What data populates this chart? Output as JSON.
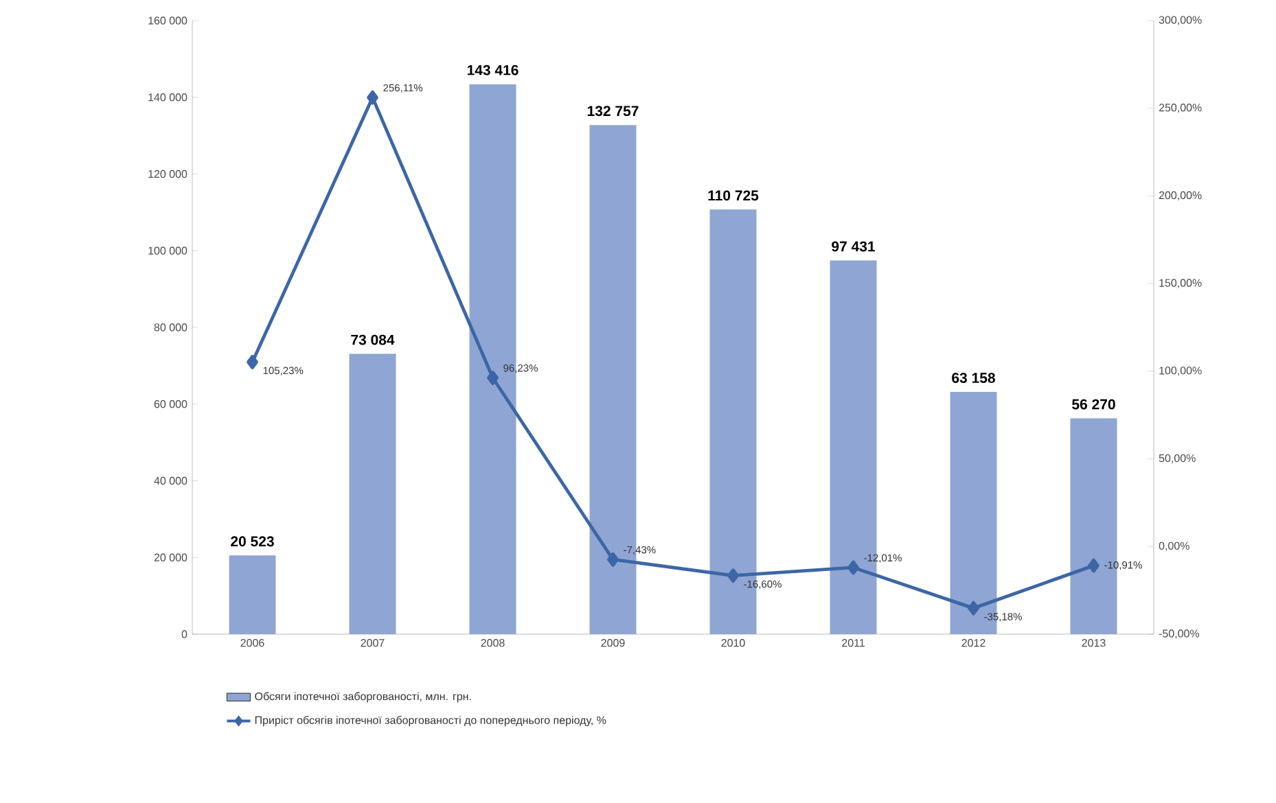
{
  "chart_data": {
    "type": "bar",
    "categories": [
      "2006",
      "2007",
      "2008",
      "2009",
      "2010",
      "2011",
      "2012",
      "2013"
    ],
    "series": [
      {
        "name": "Обсяги іпотечної заборгованості, млн. грн.",
        "color": "#8fa5d3",
        "values": [
          20523,
          73084,
          143416,
          132757,
          110725,
          97431,
          63158,
          56270
        ],
        "value_labels": [
          "20 523",
          "73 084",
          "143 416",
          "132 757",
          "110 725",
          "97 431",
          "63 158",
          "56 270"
        ]
      },
      {
        "name": "Приріст обсягів іпотечної заборгованості до попереднього періоду, %",
        "type": "line",
        "axis": "y2",
        "color": "#3c66a6",
        "marker": "diamond",
        "values": [
          105.23,
          256.11,
          96.23,
          -7.43,
          -16.6,
          -12.01,
          -35.18,
          -10.91
        ],
        "value_labels": [
          "105,23%",
          "256,11%",
          "96,23%",
          "-7,43%",
          "-16,60%",
          "-12,01%",
          "-35,18%",
          "-10,91%"
        ]
      }
    ],
    "ylim": [
      0,
      160000
    ],
    "yticks": [
      {
        "value": 0,
        "label": "0"
      },
      {
        "value": 20000,
        "label": "20 000"
      },
      {
        "value": 40000,
        "label": "40 000"
      },
      {
        "value": 60000,
        "label": "60 000"
      },
      {
        "value": 80000,
        "label": "80 000"
      },
      {
        "value": 100000,
        "label": "100 000"
      },
      {
        "value": 120000,
        "label": "120 000"
      },
      {
        "value": 140000,
        "label": "140 000"
      },
      {
        "value": 160000,
        "label": "160 000"
      }
    ],
    "y2lim": [
      -50,
      300
    ],
    "y2ticks": [
      {
        "value": -50,
        "label": "-50,00%"
      },
      {
        "value": 0,
        "label": "0,00%"
      },
      {
        "value": 50,
        "label": "50,00%"
      },
      {
        "value": 100,
        "label": "100,00%"
      },
      {
        "value": 150,
        "label": "150,00%"
      },
      {
        "value": 200,
        "label": "200,00%"
      },
      {
        "value": 250,
        "label": "250,00%"
      },
      {
        "value": 300,
        "label": "300,00%"
      }
    ],
    "grid": false,
    "legend": "bottom"
  }
}
